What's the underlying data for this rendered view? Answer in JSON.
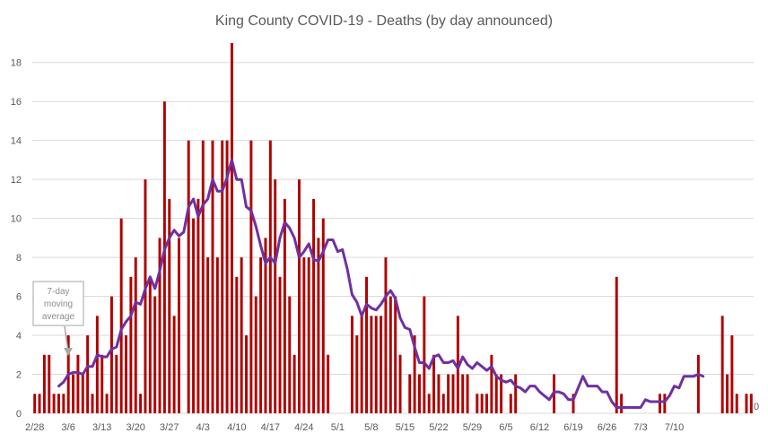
{
  "chart_data": {
    "type": "bar",
    "title": "King County COVID-19 - Deaths (by day announced)",
    "xlabel": "",
    "ylabel": "",
    "ylim": [
      0,
      19
    ],
    "yticks": [
      0,
      2,
      4,
      6,
      8,
      10,
      12,
      14,
      16,
      18
    ],
    "start_date": "2/28",
    "x_tick_labels": [
      "2/28",
      "3/6",
      "3/13",
      "3/20",
      "3/27",
      "4/3",
      "4/10",
      "4/17",
      "4/24",
      "5/1",
      "5/8",
      "5/15",
      "5/22",
      "5/29",
      "6/5",
      "6/12",
      "6/19",
      "6/26",
      "7/3",
      "7/10"
    ],
    "grid": true,
    "colors": {
      "bars": "#b00000",
      "moving_average": "#7030a0"
    },
    "series": [
      {
        "kind": "bar",
        "values": [
          1,
          1,
          3,
          3,
          1,
          1,
          1,
          4,
          2,
          3,
          2,
          4,
          1,
          5,
          3,
          1,
          6,
          3,
          10,
          4,
          7,
          8,
          1,
          12,
          7,
          6,
          9,
          16,
          11,
          5,
          9,
          0,
          14,
          10,
          11,
          14,
          8,
          14,
          8,
          14,
          14,
          19,
          7,
          8,
          4,
          14,
          6,
          8,
          9,
          14,
          12,
          7,
          11,
          6,
          3,
          12,
          8,
          8,
          11,
          9,
          10,
          3,
          0,
          0,
          0,
          0,
          5,
          4,
          5,
          7,
          5,
          5,
          5,
          8,
          6,
          6,
          3,
          0,
          2,
          4,
          2,
          6,
          1,
          3,
          2,
          1,
          2,
          2,
          5,
          2,
          2,
          0,
          1,
          1,
          1,
          3,
          2,
          2,
          0,
          1,
          2,
          0,
          0,
          0,
          0,
          0,
          0,
          0,
          2,
          0,
          0,
          0,
          1,
          0,
          0,
          0,
          0,
          0,
          0,
          0,
          0,
          7,
          1,
          0,
          0,
          0,
          0,
          0,
          0,
          0,
          1,
          1,
          0,
          0,
          0,
          0,
          0,
          0,
          3,
          0,
          0,
          0,
          0,
          5,
          2,
          4,
          1,
          0,
          1,
          1
        ]
      },
      {
        "kind": "line",
        "start_index": 5,
        "values": [
          1.4,
          1.6,
          2.0,
          2.1,
          2.1,
          2.0,
          2.4,
          2.4,
          3.0,
          2.9,
          2.9,
          3.3,
          3.4,
          4.3,
          4.7,
          5.0,
          5.7,
          5.6,
          6.4,
          7.0,
          6.4,
          7.3,
          8.4,
          9.0,
          9.4,
          9.1,
          9.3,
          10.6,
          11.0,
          10.1,
          10.7,
          11.0,
          12.0,
          11.4,
          11.4,
          12.1,
          13.0,
          12.0,
          12.0,
          10.6,
          10.4,
          9.6,
          8.6,
          7.7,
          8.0,
          7.7,
          9.0,
          9.8,
          9.5,
          9.0,
          8.0,
          8.3,
          8.7,
          7.9,
          7.8,
          8.3,
          8.9,
          8.9,
          8.3,
          8.4,
          7.4,
          6.1,
          5.7,
          5.0,
          5.6,
          5.4,
          5.3,
          5.6,
          6.0,
          6.3,
          5.9,
          4.9,
          4.4,
          4.3,
          3.4,
          2.6,
          2.6,
          2.3,
          2.9,
          3.0,
          2.6,
          2.6,
          2.7,
          2.3,
          2.9,
          2.5,
          2.3,
          2.6,
          2.4,
          2.2,
          2.4,
          1.9,
          1.7,
          1.6,
          1.7,
          1.4,
          1.3,
          1.1,
          1.4,
          1.4,
          1.1,
          0.9,
          0.7,
          1.1,
          1.1,
          1.0,
          0.7,
          0.7,
          1.3,
          1.9,
          1.4,
          1.4,
          1.4,
          1.1,
          1.1,
          0.6,
          0.3,
          0.3,
          0.3,
          0.3,
          0.3,
          0.3,
          0.7,
          0.6,
          0.6,
          0.6,
          0.6,
          0.9,
          1.4,
          1.3,
          1.9,
          1.9,
          1.9,
          2.0,
          1.9
        ]
      }
    ],
    "annotation": {
      "text": [
        "7-day",
        "moving",
        "average"
      ]
    },
    "end_label": "0"
  }
}
